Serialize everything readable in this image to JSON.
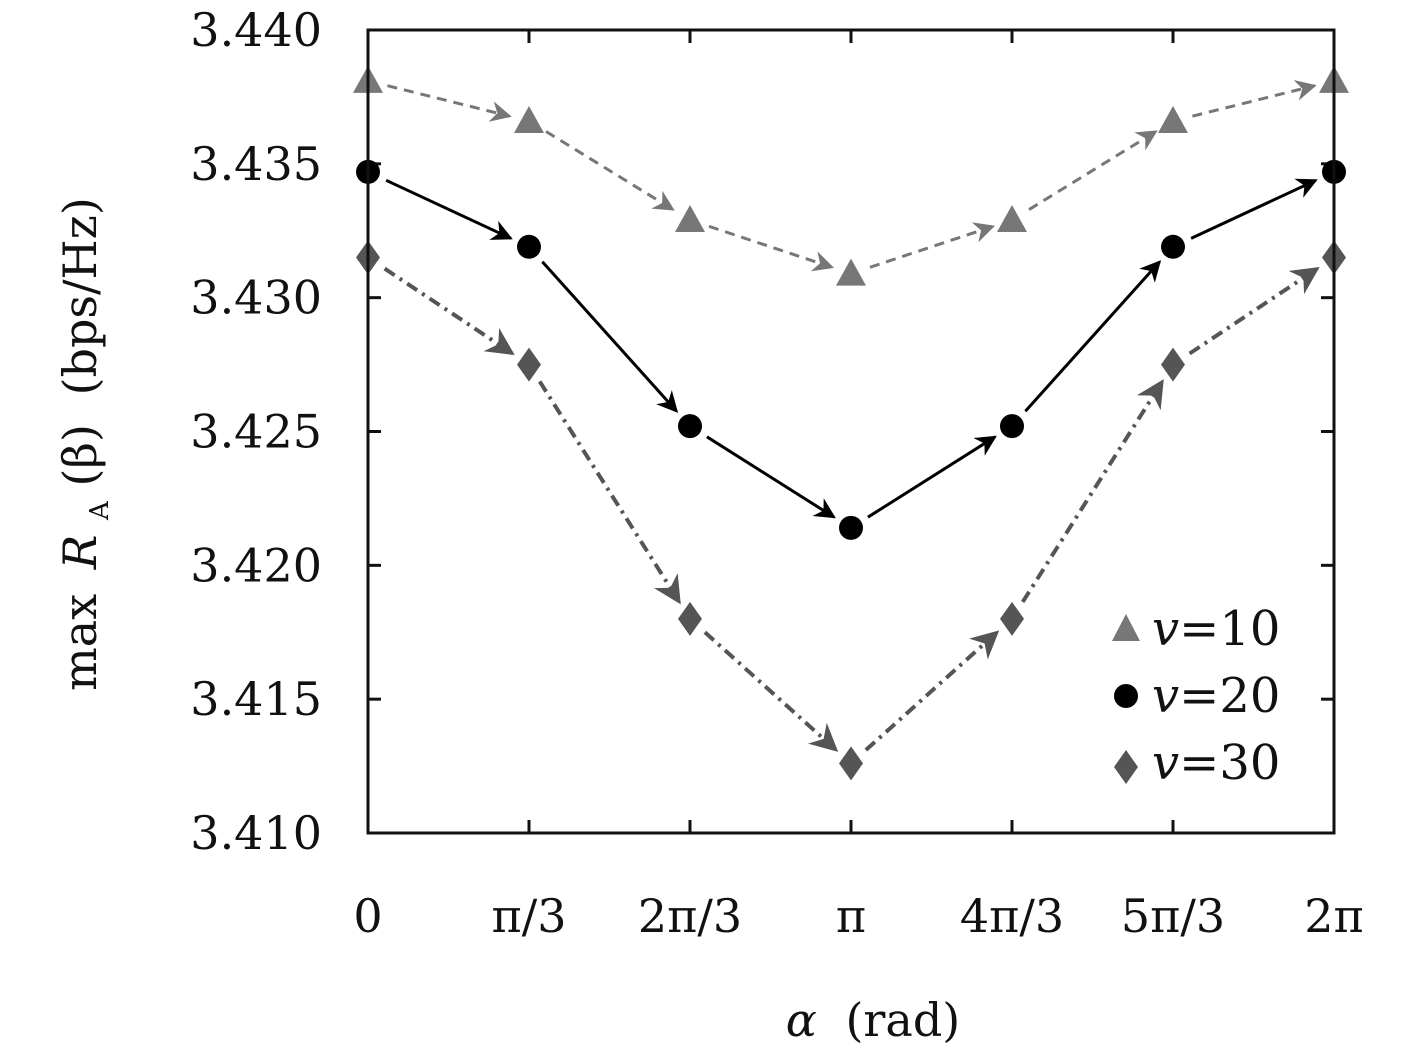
{
  "chart_data": {
    "type": "line",
    "xlabel_symbol": "α",
    "xlabel_unit": "(rad)",
    "ylabel_prefix": "max",
    "ylabel_var": "R",
    "ylabel_sub": "A",
    "ylabel_arg": "(β)",
    "ylabel_unit": "(bps/Hz)",
    "x_ticks": [
      {
        "value": 0,
        "label": "0"
      },
      {
        "value": 1.0472,
        "label": "π/3"
      },
      {
        "value": 2.0944,
        "label": "2π/3"
      },
      {
        "value": 3.1416,
        "label": "π"
      },
      {
        "value": 4.1888,
        "label": "4π/3"
      },
      {
        "value": 5.236,
        "label": "5π/3"
      },
      {
        "value": 6.2832,
        "label": "2π"
      }
    ],
    "y_ticks": [
      {
        "value": 3.41,
        "label": "3.410"
      },
      {
        "value": 3.415,
        "label": "3.415"
      },
      {
        "value": 3.42,
        "label": "3.420"
      },
      {
        "value": 3.425,
        "label": "3.425"
      },
      {
        "value": 3.43,
        "label": "3.430"
      },
      {
        "value": 3.435,
        "label": "3.435"
      },
      {
        "value": 3.44,
        "label": "3.440"
      }
    ],
    "xlim": [
      0,
      6.2832
    ],
    "ylim": [
      3.41,
      3.44
    ],
    "grid": false,
    "legend_position": "bottom-right",
    "series": [
      {
        "name": "v=10",
        "legend_var": "v",
        "legend_value": "=10",
        "marker": "triangle",
        "color": "#777777",
        "line_style": "dashed",
        "x": [
          0,
          1.0472,
          2.0944,
          3.1416,
          4.1888,
          5.236,
          6.2832
        ],
        "values": [
          3.4381,
          3.4366,
          3.4329,
          3.4309,
          3.4329,
          3.4366,
          3.4381
        ]
      },
      {
        "name": "v=20",
        "legend_var": "v",
        "legend_value": "=20",
        "marker": "circle",
        "color": "#000000",
        "line_style": "solid",
        "x": [
          0,
          1.0472,
          2.0944,
          3.1416,
          4.1888,
          5.236,
          6.2832
        ],
        "values": [
          3.4347,
          3.4319,
          3.4252,
          3.4214,
          3.4252,
          3.4319,
          3.4347
        ]
      },
      {
        "name": "v=30",
        "legend_var": "v",
        "legend_value": "=30",
        "marker": "diamond",
        "color": "#555555",
        "line_style": "dashdot",
        "x": [
          0,
          1.0472,
          2.0944,
          3.1416,
          4.1888,
          5.236,
          6.2832
        ],
        "values": [
          3.4315,
          3.4275,
          3.418,
          3.4126,
          3.418,
          3.4275,
          3.4315
        ]
      }
    ]
  }
}
